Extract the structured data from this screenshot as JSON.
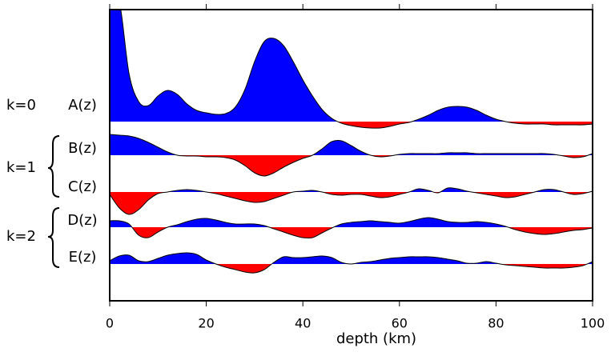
{
  "chart_data": {
    "type": "wiggle",
    "xlabel": "depth (km)",
    "xlim": [
      0,
      100
    ],
    "xticks": [
      0,
      20,
      40,
      60,
      80,
      100
    ],
    "positive_color": "#0000ff",
    "negative_color": "#ff0000",
    "groups": [
      "k=0",
      "k=1",
      "k=2"
    ],
    "x": [
      0,
      2,
      4,
      6,
      8,
      10,
      12,
      14,
      16,
      18,
      20,
      22,
      24,
      26,
      28,
      30,
      32,
      34,
      36,
      38,
      40,
      42,
      44,
      46,
      48,
      50,
      52,
      54,
      56,
      58,
      60,
      62,
      64,
      66,
      68,
      70,
      72,
      74,
      76,
      78,
      80,
      82,
      84,
      86,
      88,
      90,
      92,
      94,
      96,
      98,
      100
    ],
    "series": [
      {
        "name": "A(z)",
        "values": [
          160,
          150,
          60,
          25,
          20,
          32,
          39,
          34,
          22,
          14,
          11,
          9,
          10,
          18,
          40,
          75,
          100,
          104,
          95,
          75,
          52,
          32,
          15,
          4,
          -2,
          -5,
          -7,
          -8,
          -8,
          -6,
          -3,
          -1,
          3,
          8,
          14,
          18,
          19,
          18,
          14,
          8,
          3,
          0,
          -2,
          -3,
          -3,
          -3,
          -4,
          -4,
          -4,
          -4,
          -3
        ]
      },
      {
        "name": "B(z)",
        "values": [
          26,
          25,
          24,
          21,
          16,
          10,
          4,
          0,
          -1,
          -1,
          -2,
          -2,
          -3,
          -6,
          -13,
          -22,
          -26,
          -22,
          -15,
          -9,
          -4,
          0,
          8,
          17,
          18,
          12,
          5,
          0,
          -2,
          -1,
          1,
          2,
          2,
          2,
          2,
          3,
          3,
          3,
          2,
          2,
          2,
          2,
          2,
          2,
          2,
          2,
          1,
          -1,
          -3,
          -2,
          2
        ]
      },
      {
        "name": "C(z)",
        "values": [
          -3,
          -20,
          -28,
          -22,
          -10,
          -2,
          0,
          2,
          3,
          2,
          0,
          -2,
          -5,
          -8,
          -11,
          -13,
          -12,
          -8,
          -4,
          0,
          1,
          2,
          0,
          -3,
          -4,
          -3,
          -3,
          -5,
          -7,
          -6,
          -3,
          0,
          4,
          2,
          -1,
          5,
          4,
          1,
          -1,
          -3,
          -5,
          -7,
          -6,
          -3,
          0,
          3,
          3,
          0,
          -3,
          -2,
          1
        ]
      },
      {
        "name": "D(z)",
        "values": [
          8,
          8,
          4,
          -10,
          -13,
          -6,
          0,
          3,
          7,
          10,
          11,
          9,
          6,
          4,
          4,
          4,
          2,
          -2,
          -6,
          -10,
          -13,
          -13,
          -7,
          -1,
          4,
          6,
          7,
          8,
          7,
          6,
          5,
          7,
          10,
          12,
          10,
          7,
          6,
          6,
          7,
          6,
          4,
          1,
          -3,
          -6,
          -8,
          -9,
          -8,
          -6,
          -4,
          -3,
          -1
        ]
      },
      {
        "name": "E(z)",
        "values": [
          4,
          10,
          11,
          4,
          3,
          7,
          11,
          13,
          14,
          12,
          5,
          0,
          -4,
          -7,
          -10,
          -11,
          -7,
          2,
          9,
          8,
          8,
          9,
          10,
          8,
          2,
          0,
          2,
          3,
          5,
          7,
          8,
          9,
          9,
          9,
          8,
          6,
          4,
          1,
          1,
          3,
          1,
          -1,
          -2,
          -3,
          -4,
          -5,
          -5,
          -5,
          -4,
          -2,
          3
        ]
      }
    ]
  }
}
